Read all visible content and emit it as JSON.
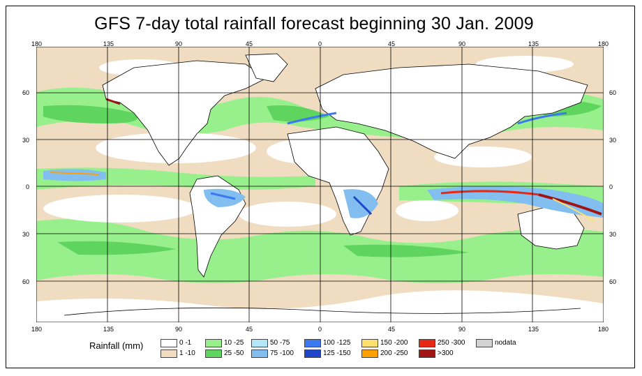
{
  "title": "GFS 7-day total rainfall forecast beginning 30 Jan. 2009",
  "map": {
    "lon_ticks": [
      "180",
      "135",
      "90",
      "45",
      "0",
      "45",
      "90",
      "135",
      "180"
    ],
    "lat_ticks": [
      "60",
      "30",
      "0",
      "30",
      "60"
    ],
    "land_color": "#ffffff",
    "ocean_dry_color": "#ffffff"
  },
  "legend": {
    "title": "Rainfall (mm)",
    "items": [
      {
        "label": "0 -1",
        "color": "#ffffff"
      },
      {
        "label": "1 -10",
        "color": "#f0dcc0"
      },
      {
        "label": "10 -25",
        "color": "#98f08c"
      },
      {
        "label": "25 -50",
        "color": "#5fd45f"
      },
      {
        "label": "50 -75",
        "color": "#b4e8f8"
      },
      {
        "label": "75 -100",
        "color": "#82bff0"
      },
      {
        "label": "100 -125",
        "color": "#3c78f0"
      },
      {
        "label": "125 -150",
        "color": "#1e46c8"
      },
      {
        "label": "150 -200",
        "color": "#ffe06e"
      },
      {
        "label": "200 -250",
        "color": "#ffa000"
      },
      {
        "label": "250 -300",
        "color": "#e62814"
      },
      {
        "label": ">300",
        "color": "#a01414"
      },
      {
        "label": "nodata",
        "color": "#d2d2d2"
      }
    ]
  }
}
